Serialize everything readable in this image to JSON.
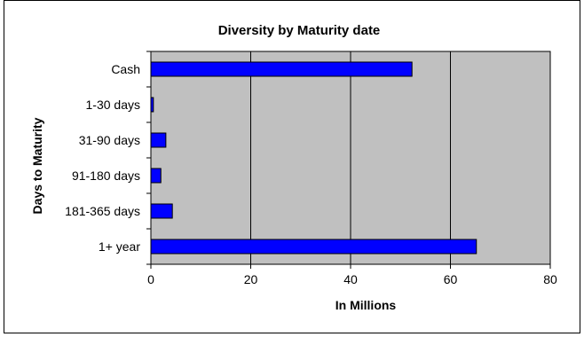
{
  "chart_data": {
    "type": "bar",
    "orientation": "horizontal",
    "title": "Diversity by Maturity date",
    "xlabel": "In Millions",
    "ylabel": "Days to Maturity",
    "categories": [
      "Cash",
      "1-30 days",
      "31-90 days",
      "91-180 days",
      "181-365 days",
      "1+ year"
    ],
    "values": [
      52.3,
      0.5,
      3.0,
      2.0,
      4.3,
      65.2
    ],
    "xlim": [
      0,
      80
    ],
    "xticks": [
      0,
      20,
      40,
      60,
      80
    ],
    "grid": true,
    "legend": "none",
    "bar_color": "#0000ff",
    "plot_background": "#c0c0c0"
  }
}
